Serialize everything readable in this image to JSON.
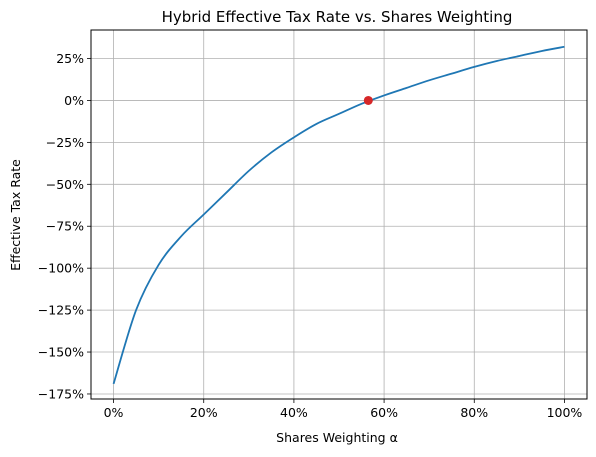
{
  "chart_data": {
    "type": "line",
    "title": "Hybrid Effective Tax Rate vs. Shares Weighting",
    "xlabel": "Shares Weighting α",
    "ylabel": "Effective Tax Rate",
    "xlim": [
      -0.05,
      1.05
    ],
    "ylim": [
      -1.78,
      0.42
    ],
    "x_ticks": [
      0,
      0.2,
      0.4,
      0.6,
      0.8,
      1.0
    ],
    "x_tick_labels": [
      "0%",
      "20%",
      "40%",
      "60%",
      "80%",
      "100%"
    ],
    "y_ticks": [
      0.25,
      0,
      -0.25,
      -0.5,
      -0.75,
      -1.0,
      -1.25,
      -1.5,
      -1.75
    ],
    "y_tick_labels": [
      "25%",
      "0%",
      "−25%",
      "−50%",
      "−75%",
      "−100%",
      "−125%",
      "−150%",
      "−175%"
    ],
    "grid": true,
    "colors": {
      "line": "#1f77b4",
      "marker": "#d62728",
      "grid": "#b0b0b0"
    },
    "series": [
      {
        "x": [
          0,
          0.05,
          0.1,
          0.15,
          0.2,
          0.25,
          0.3,
          0.35,
          0.4,
          0.45,
          0.5,
          0.55,
          0.6,
          0.65,
          0.7,
          0.75,
          0.8,
          0.85,
          0.9,
          0.95,
          1.0
        ],
        "y": [
          -1.69,
          -1.25,
          -0.98,
          -0.81,
          -0.68,
          -0.55,
          -0.42,
          -0.31,
          -0.22,
          -0.14,
          -0.08,
          -0.02,
          0.03,
          0.075,
          0.12,
          0.16,
          0.2,
          0.235,
          0.265,
          0.295,
          0.32
        ]
      }
    ],
    "highlight_point": {
      "x": 0.565,
      "y": 0.0
    }
  }
}
